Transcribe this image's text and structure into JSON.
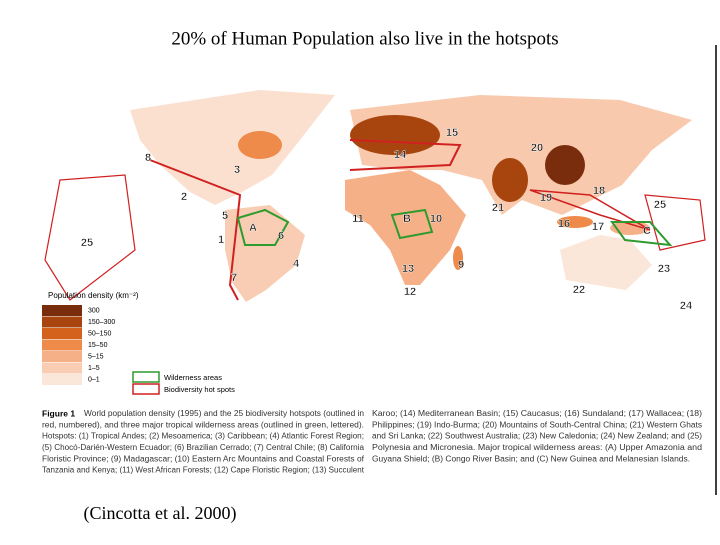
{
  "title": "20% of Human Population also live in the hotspots",
  "map": {
    "labels": [
      "8",
      "3",
      "2",
      "5",
      "1",
      "A",
      "6",
      "4",
      "7",
      "25",
      "11",
      "B",
      "10",
      "13",
      "9",
      "12",
      "14",
      "15",
      "20",
      "21",
      "19",
      "18",
      "16",
      "17",
      "C",
      "25",
      "23",
      "22",
      "24"
    ]
  },
  "legend": {
    "title": "Population density (km⁻²)",
    "classes": [
      {
        "label": "300",
        "color": "#7a2d0c"
      },
      {
        "label": "150–300",
        "color": "#a8450f"
      },
      {
        "label": "50–150",
        "color": "#d4621c"
      },
      {
        "label": "15–50",
        "color": "#ee8a4a"
      },
      {
        "label": "5–15",
        "color": "#f6b088"
      },
      {
        "label": "1–5",
        "color": "#f9cdb3"
      },
      {
        "label": "0–1",
        "color": "#fbe6da"
      }
    ],
    "wilderness": "Wilderness areas",
    "hotspots": "Biodiversity hot spots"
  },
  "caption": {
    "figure_label": "Figure 1",
    "left": [
      "World population density (1995) and the 25 biodiversity hotspots (outlined in",
      "red, numbered), and three major tropical wilderness areas (outlined in green, lettered).",
      "Hotspots: (1) Tropical Andes; (2) Mesoamerica; (3) Caribbean; (4) Atlantic Forest Region;",
      "(5) Chocó-Darién-Western Ecuador; (6) Brazilian Cerrado; (7) Central Chile; (8) California",
      "Floristic Province; (9) Madagascar; (10) Eastern Arc Mountains and Coastal Forests of",
      "Tanzania and Kenya; (11) West African Forests; (12) Cape Floristic Region; (13) Succulent"
    ],
    "right": [
      "Karoo; (14) Mediterranean Basin; (15) Caucasus; (16) Sundaland; (17) Wallacea; (18)",
      "Philippines; (19) Indo-Burma; (20) Mountains of South-Central China; (21) Western Ghats",
      "and Sri Lanka; (22) Southwest Australia; (23) New Caledonia; (24) New Zealand; and (25)",
      "Polynesia and Micronesia. Major tropical wilderness areas: (A) Upper Amazonia and",
      "Guyana Shield; (B) Congo River Basin; and (C) New Guinea and Melanesian Islands."
    ]
  },
  "citation": "(Cincotta et al. 2000)"
}
